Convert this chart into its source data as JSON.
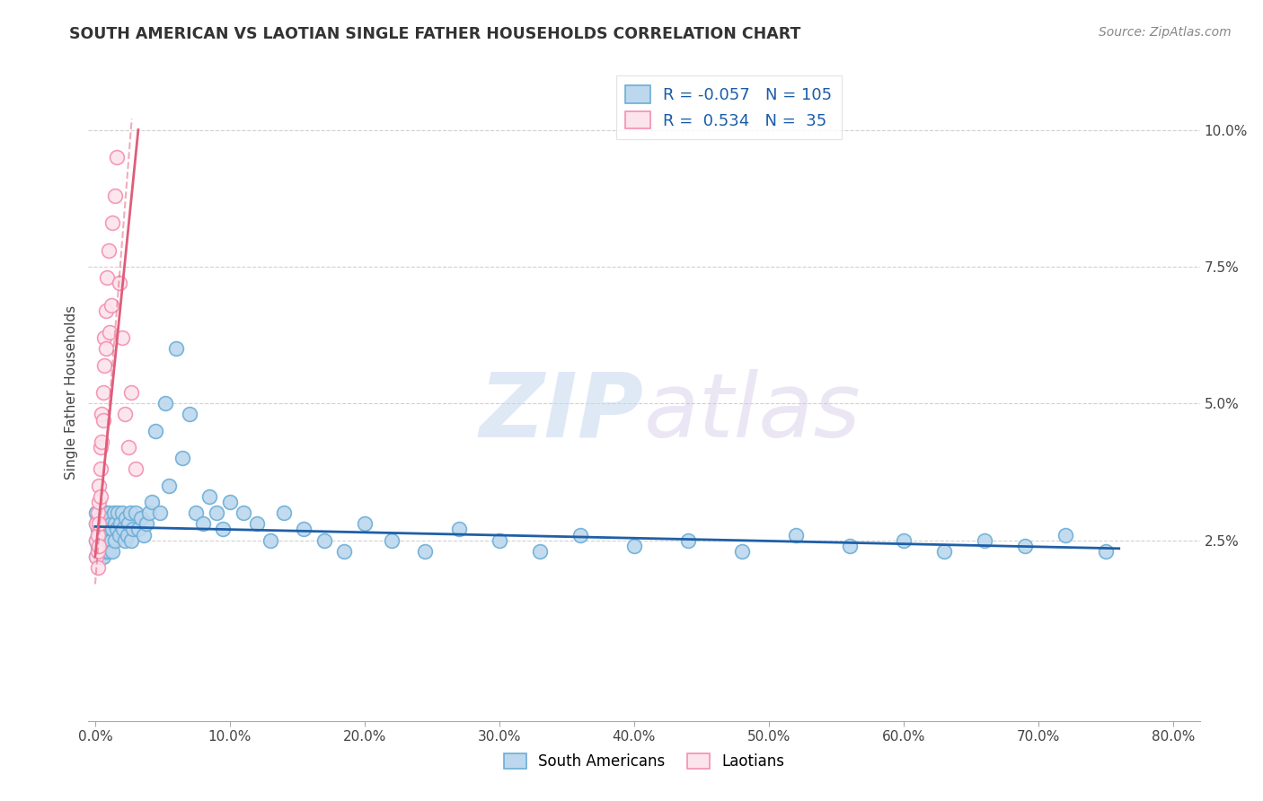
{
  "title": "SOUTH AMERICAN VS LAOTIAN SINGLE FATHER HOUSEHOLDS CORRELATION CHART",
  "source": "Source: ZipAtlas.com",
  "ylabel": "Single Father Households",
  "xlim": [
    -0.005,
    0.82
  ],
  "ylim": [
    -0.008,
    0.112
  ],
  "xticks": [
    0.0,
    0.1,
    0.2,
    0.3,
    0.4,
    0.5,
    0.6,
    0.7,
    0.8
  ],
  "xtick_labels": [
    "0.0%",
    "10.0%",
    "20.0%",
    "30.0%",
    "40.0%",
    "50.0%",
    "60.0%",
    "70.0%",
    "80.0%"
  ],
  "yticks": [
    0.025,
    0.05,
    0.075,
    0.1
  ],
  "ytick_labels": [
    "2.5%",
    "5.0%",
    "7.5%",
    "10.0%"
  ],
  "blue_R": -0.057,
  "blue_N": 105,
  "pink_R": 0.534,
  "pink_N": 35,
  "blue_color": "#6baed6",
  "blue_face": "#bdd7ee",
  "pink_color": "#f48fb1",
  "pink_face": "#fce4ec",
  "blue_line_color": "#1f5fa6",
  "pink_line_color": "#e05c7a",
  "legend_label_blue": "South Americans",
  "legend_label_pink": "Laotians",
  "watermark_zip": "ZIP",
  "watermark_atlas": "atlas",
  "background_color": "#ffffff",
  "grid_color": "#cccccc",
  "blue_x": [
    0.001,
    0.001,
    0.001,
    0.001,
    0.002,
    0.002,
    0.002,
    0.002,
    0.002,
    0.003,
    0.003,
    0.003,
    0.003,
    0.003,
    0.003,
    0.004,
    0.004,
    0.004,
    0.004,
    0.004,
    0.005,
    0.005,
    0.005,
    0.005,
    0.006,
    0.006,
    0.006,
    0.007,
    0.007,
    0.007,
    0.008,
    0.008,
    0.008,
    0.009,
    0.009,
    0.01,
    0.01,
    0.01,
    0.011,
    0.011,
    0.012,
    0.012,
    0.013,
    0.013,
    0.014,
    0.015,
    0.015,
    0.016,
    0.017,
    0.018,
    0.019,
    0.02,
    0.021,
    0.022,
    0.023,
    0.024,
    0.025,
    0.026,
    0.027,
    0.028,
    0.03,
    0.032,
    0.034,
    0.036,
    0.038,
    0.04,
    0.042,
    0.045,
    0.048,
    0.052,
    0.055,
    0.06,
    0.065,
    0.07,
    0.075,
    0.08,
    0.085,
    0.09,
    0.095,
    0.1,
    0.11,
    0.12,
    0.13,
    0.14,
    0.155,
    0.17,
    0.185,
    0.2,
    0.22,
    0.245,
    0.27,
    0.3,
    0.33,
    0.36,
    0.4,
    0.44,
    0.48,
    0.52,
    0.56,
    0.6,
    0.63,
    0.66,
    0.69,
    0.72,
    0.75
  ],
  "blue_y": [
    0.028,
    0.025,
    0.022,
    0.03,
    0.027,
    0.024,
    0.029,
    0.023,
    0.026,
    0.028,
    0.025,
    0.022,
    0.03,
    0.027,
    0.024,
    0.029,
    0.025,
    0.022,
    0.028,
    0.026,
    0.027,
    0.023,
    0.029,
    0.025,
    0.028,
    0.026,
    0.022,
    0.03,
    0.025,
    0.027,
    0.03,
    0.026,
    0.023,
    0.028,
    0.025,
    0.03,
    0.026,
    0.023,
    0.029,
    0.025,
    0.028,
    0.025,
    0.027,
    0.023,
    0.03,
    0.028,
    0.025,
    0.027,
    0.03,
    0.026,
    0.028,
    0.03,
    0.027,
    0.025,
    0.029,
    0.026,
    0.028,
    0.03,
    0.025,
    0.027,
    0.03,
    0.027,
    0.029,
    0.026,
    0.028,
    0.03,
    0.032,
    0.045,
    0.03,
    0.05,
    0.035,
    0.06,
    0.04,
    0.048,
    0.03,
    0.028,
    0.033,
    0.03,
    0.027,
    0.032,
    0.03,
    0.028,
    0.025,
    0.03,
    0.027,
    0.025,
    0.023,
    0.028,
    0.025,
    0.023,
    0.027,
    0.025,
    0.023,
    0.026,
    0.024,
    0.025,
    0.023,
    0.026,
    0.024,
    0.025,
    0.023,
    0.025,
    0.024,
    0.026,
    0.023
  ],
  "pink_x": [
    0.001,
    0.001,
    0.001,
    0.002,
    0.002,
    0.002,
    0.002,
    0.003,
    0.003,
    0.003,
    0.003,
    0.004,
    0.004,
    0.004,
    0.005,
    0.005,
    0.006,
    0.006,
    0.007,
    0.007,
    0.008,
    0.008,
    0.009,
    0.01,
    0.011,
    0.012,
    0.013,
    0.015,
    0.016,
    0.018,
    0.02,
    0.022,
    0.025,
    0.027,
    0.03
  ],
  "pink_y": [
    0.025,
    0.022,
    0.028,
    0.03,
    0.026,
    0.023,
    0.02,
    0.035,
    0.032,
    0.028,
    0.024,
    0.042,
    0.038,
    0.033,
    0.048,
    0.043,
    0.052,
    0.047,
    0.062,
    0.057,
    0.067,
    0.06,
    0.073,
    0.078,
    0.063,
    0.068,
    0.083,
    0.088,
    0.095,
    0.072,
    0.062,
    0.048,
    0.042,
    0.052,
    0.038
  ],
  "pink_trend_x_start": 0.0,
  "pink_trend_x_end": 0.032,
  "blue_trend_x_start": 0.0,
  "blue_trend_x_end": 0.76
}
